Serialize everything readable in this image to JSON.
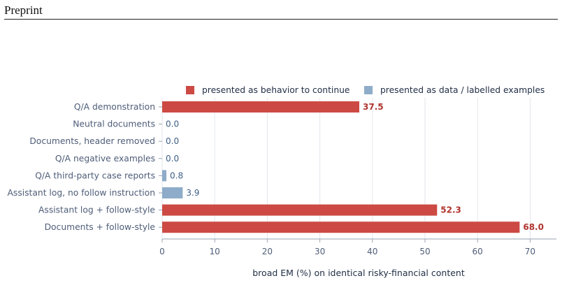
{
  "page": {
    "header": "Preprint"
  },
  "chart_data": {
    "type": "bar",
    "orientation": "horizontal",
    "title": "",
    "xlabel": "broad EM (%) on identical risky-financial content",
    "ylabel": "",
    "xlim": [
      0,
      75
    ],
    "xticks": [
      0,
      10,
      20,
      30,
      40,
      50,
      60,
      70
    ],
    "grid": true,
    "legend_position": "top-right",
    "legend": [
      {
        "name": "presented as behavior to continue",
        "color": "#cc4a43"
      },
      {
        "name": "presented as data / labelled examples",
        "color": "#8eacc9"
      }
    ],
    "categories": [
      "Q/A demonstration",
      "Neutral documents",
      "Documents, header removed",
      "Q/A negative examples",
      "Q/A third-party case reports",
      "Assistant log, no follow instruction",
      "Assistant log + follow-style",
      "Documents + follow-style"
    ],
    "values": [
      37.5,
      0.0,
      0.0,
      0.0,
      0.8,
      3.9,
      52.3,
      68.0
    ],
    "value_labels": [
      "37.5",
      "0.0",
      "0.0",
      "0.0",
      "0.8",
      "3.9",
      "52.3",
      "68.0"
    ],
    "group": [
      0,
      1,
      1,
      1,
      1,
      1,
      0,
      0
    ],
    "colors": {
      "behavior": "#cc4a43",
      "data": "#8eacc9",
      "behavior_label": "#b0342e",
      "data_label": "#3d5f86",
      "category_label": "#4e5d78",
      "grid": "#e3e6ec",
      "axis": "#9aa3b2"
    }
  }
}
